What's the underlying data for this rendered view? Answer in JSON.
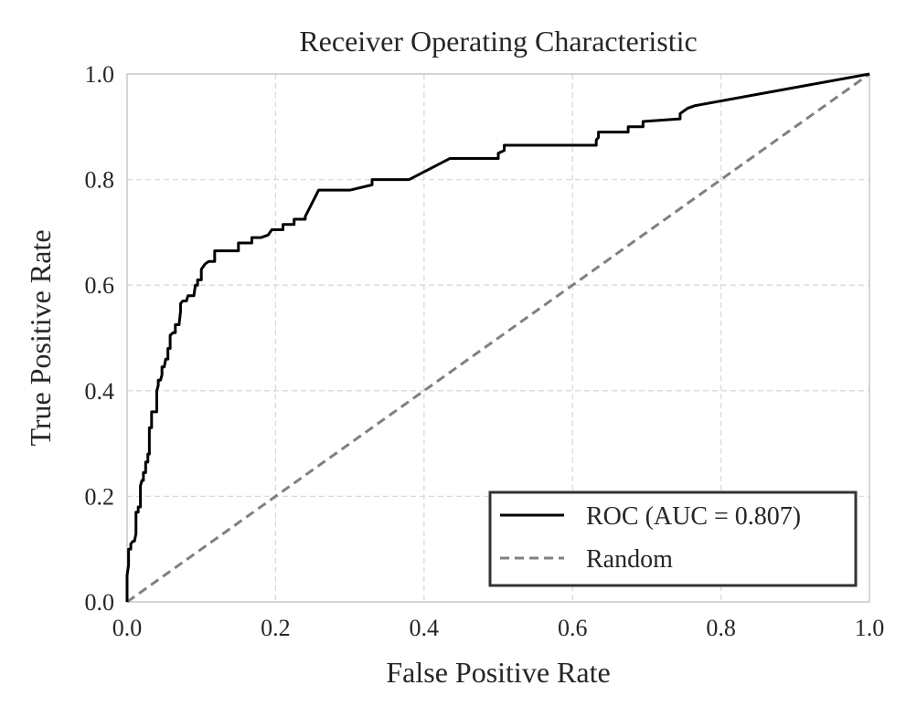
{
  "chart_data": {
    "type": "line",
    "title": "Receiver Operating Characteristic",
    "xlabel": "False Positive Rate",
    "ylabel": "True Positive Rate",
    "xlim": [
      0.0,
      1.0
    ],
    "ylim": [
      0.0,
      1.0
    ],
    "xticks": [
      "0.0",
      "0.2",
      "0.4",
      "0.6",
      "0.8",
      "1.0"
    ],
    "yticks": [
      "0.0",
      "0.2",
      "0.4",
      "0.6",
      "0.8",
      "1.0"
    ],
    "grid": true,
    "legend_position": "lower-right",
    "series": [
      {
        "name": "ROC (AUC = 0.807)",
        "color": "#000000",
        "style": "solid",
        "x": [
          0.0,
          0.0,
          0.002,
          0.002,
          0.005,
          0.005,
          0.008,
          0.01,
          0.012,
          0.012,
          0.015,
          0.015,
          0.018,
          0.018,
          0.02,
          0.022,
          0.022,
          0.025,
          0.025,
          0.028,
          0.028,
          0.03,
          0.03,
          0.033,
          0.033,
          0.035,
          0.04,
          0.04,
          0.042,
          0.042,
          0.045,
          0.047,
          0.047,
          0.05,
          0.052,
          0.055,
          0.055,
          0.058,
          0.058,
          0.062,
          0.065,
          0.065,
          0.07,
          0.072,
          0.072,
          0.075,
          0.08,
          0.082,
          0.085,
          0.09,
          0.092,
          0.095,
          0.095,
          0.1,
          0.1,
          0.105,
          0.11,
          0.118,
          0.118,
          0.15,
          0.15,
          0.168,
          0.168,
          0.18,
          0.19,
          0.195,
          0.21,
          0.21,
          0.225,
          0.225,
          0.24,
          0.24,
          0.258,
          0.3,
          0.33,
          0.33,
          0.38,
          0.435,
          0.5,
          0.5,
          0.508,
          0.508,
          0.56,
          0.632,
          0.632,
          0.635,
          0.635,
          0.675,
          0.675,
          0.695,
          0.695,
          0.745,
          0.745,
          0.755,
          0.765,
          1.0
        ],
        "y": [
          0.0,
          0.05,
          0.07,
          0.1,
          0.1,
          0.11,
          0.115,
          0.115,
          0.13,
          0.17,
          0.17,
          0.18,
          0.18,
          0.22,
          0.23,
          0.23,
          0.245,
          0.245,
          0.265,
          0.265,
          0.28,
          0.28,
          0.33,
          0.33,
          0.36,
          0.36,
          0.36,
          0.4,
          0.41,
          0.42,
          0.42,
          0.43,
          0.445,
          0.445,
          0.46,
          0.46,
          0.48,
          0.48,
          0.505,
          0.51,
          0.51,
          0.525,
          0.525,
          0.55,
          0.565,
          0.57,
          0.57,
          0.58,
          0.58,
          0.58,
          0.6,
          0.6,
          0.61,
          0.61,
          0.63,
          0.64,
          0.645,
          0.645,
          0.665,
          0.665,
          0.68,
          0.68,
          0.69,
          0.69,
          0.695,
          0.705,
          0.705,
          0.715,
          0.715,
          0.725,
          0.725,
          0.73,
          0.78,
          0.78,
          0.79,
          0.8,
          0.8,
          0.84,
          0.84,
          0.85,
          0.855,
          0.865,
          0.865,
          0.865,
          0.875,
          0.88,
          0.89,
          0.89,
          0.9,
          0.9,
          0.91,
          0.915,
          0.925,
          0.935,
          0.94,
          1.0
        ]
      },
      {
        "name": "Random",
        "color": "#808080",
        "style": "dashed",
        "x": [
          0.0,
          1.0
        ],
        "y": [
          0.0,
          1.0
        ]
      }
    ]
  }
}
